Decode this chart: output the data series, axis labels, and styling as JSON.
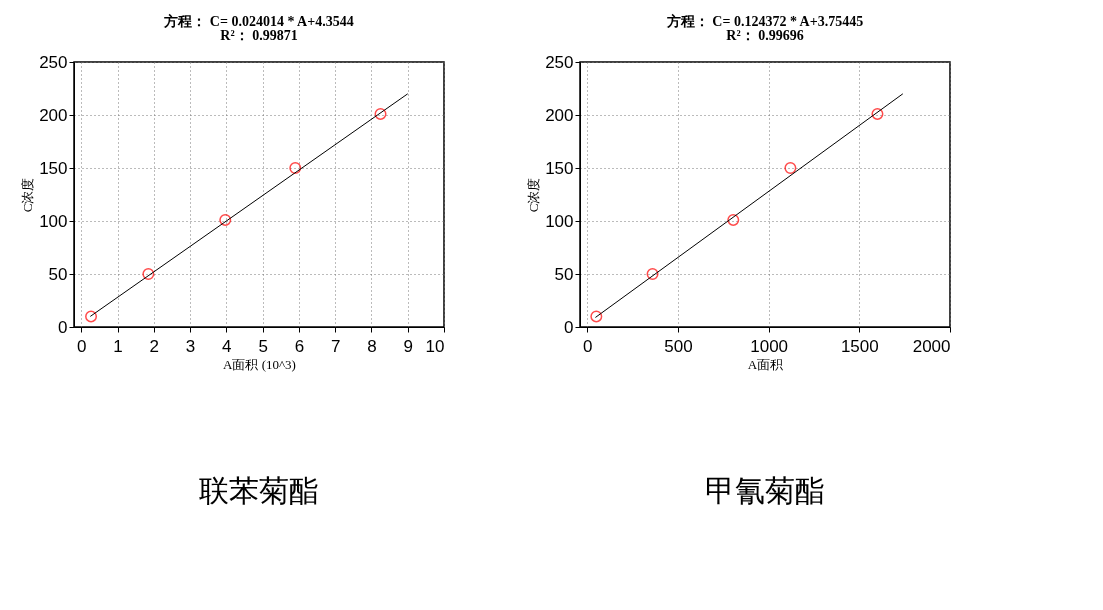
{
  "chart_data": [
    {
      "type": "scatter",
      "title": "方程：  C= 0.024014 * A+4.3544",
      "subtitle": "R²：  0.99871",
      "xlabel": "A面积 (10^3)",
      "ylabel": "C浓度",
      "annotations": [
        "联苯菊酯"
      ],
      "xlim": [
        -0.2,
        10
      ],
      "ylim": [
        0,
        250
      ],
      "xticks": [
        0,
        1,
        2,
        3,
        4,
        5,
        6,
        7,
        8,
        9,
        10
      ],
      "yticks": [
        0,
        50,
        100,
        150,
        200,
        250
      ],
      "grid": true,
      "series": [
        {
          "color": "#ff0000",
          "marker": "circle",
          "x": [
            0.27,
            1.85,
            3.97,
            5.9,
            8.25
          ],
          "values": [
            10,
            50,
            101,
            150,
            201
          ]
        },
        {
          "type": "line",
          "color": "#000000",
          "marker": "none",
          "line_style": "solid",
          "x": [
            0.25,
            9
          ],
          "values": [
            10,
            220
          ]
        }
      ]
    },
    {
      "type": "scatter",
      "title": "方程：   C= 0.124372 * A+3.75445",
      "subtitle": "R²：  0.99696",
      "xlabel": "A面积",
      "ylabel": "C浓度",
      "annotations": [
        "甲氰菊酯"
      ],
      "xlim": [
        -40,
        2000
      ],
      "ylim": [
        0,
        250
      ],
      "xticks": [
        0,
        500,
        1000,
        1500,
        2000
      ],
      "yticks": [
        0,
        50,
        100,
        150,
        200,
        250
      ],
      "grid": true,
      "series": [
        {
          "color": "#ff0000",
          "marker": "circle",
          "x": [
            50,
            360,
            805,
            1120,
            1600
          ],
          "values": [
            10,
            50,
            101,
            150,
            201
          ]
        },
        {
          "type": "line",
          "color": "#000000",
          "marker": "none",
          "line_style": "solid",
          "x": [
            45,
            1740
          ],
          "values": [
            9,
            220
          ]
        }
      ]
    }
  ]
}
